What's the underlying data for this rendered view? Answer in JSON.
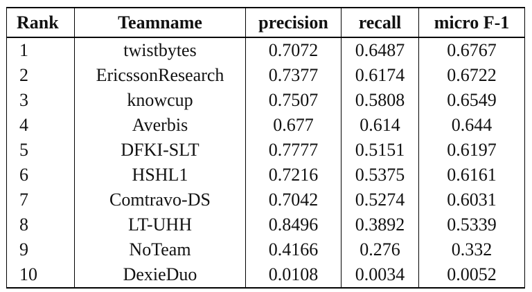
{
  "table": {
    "columns": [
      "Rank",
      "Teamname",
      "precision",
      "recall",
      "micro F-1"
    ],
    "rows": [
      {
        "rank": "1",
        "team": "twistbytes",
        "precision": "0.7072",
        "recall": "0.6487",
        "f1": "0.6767"
      },
      {
        "rank": "2",
        "team": "EricssonResearch",
        "precision": "0.7377",
        "recall": "0.6174",
        "f1": "0.6722"
      },
      {
        "rank": "3",
        "team": "knowcup",
        "precision": "0.7507",
        "recall": "0.5808",
        "f1": "0.6549"
      },
      {
        "rank": "4",
        "team": "Averbis",
        "precision": "0.677",
        "recall": "0.614",
        "f1": "0.644"
      },
      {
        "rank": "5",
        "team": "DFKI-SLT",
        "precision": "0.7777",
        "recall": "0.5151",
        "f1": "0.6197"
      },
      {
        "rank": "6",
        "team": "HSHL1",
        "precision": "0.7216",
        "recall": "0.5375",
        "f1": "0.6161"
      },
      {
        "rank": "7",
        "team": "Comtravo-DS",
        "precision": "0.7042",
        "recall": "0.5274",
        "f1": "0.6031"
      },
      {
        "rank": "8",
        "team": "LT-UHH",
        "precision": "0.8496",
        "recall": "0.3892",
        "f1": "0.5339"
      },
      {
        "rank": "9",
        "team": "NoTeam",
        "precision": "0.4166",
        "recall": "0.276",
        "f1": "0.332"
      },
      {
        "rank": "10",
        "team": "DexieDuo",
        "precision": "0.0108",
        "recall": "0.0034",
        "f1": "0.0052"
      }
    ]
  }
}
